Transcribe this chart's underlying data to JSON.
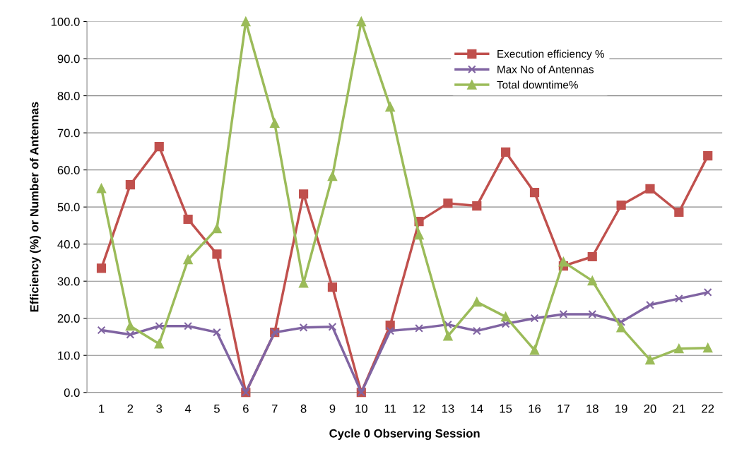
{
  "chart_data": {
    "type": "line",
    "xlabel": "Cycle 0 Observing Session",
    "ylabel": "Efficiency (%) or Number of Antennas",
    "categories": [
      "1",
      "2",
      "3",
      "4",
      "5",
      "6",
      "7",
      "8",
      "9",
      "10",
      "11",
      "12",
      "13",
      "14",
      "15",
      "16",
      "17",
      "18",
      "19",
      "20",
      "21",
      "22"
    ],
    "series": [
      {
        "name": "Execution efficiency %",
        "color": "#c0504d",
        "marker": "square",
        "values": [
          33.5,
          56.0,
          66.3,
          46.7,
          37.3,
          0,
          16.2,
          53.5,
          28.4,
          0,
          18.1,
          46.1,
          51.0,
          50.3,
          64.8,
          53.9,
          34.1,
          36.6,
          50.5,
          54.9,
          48.6,
          63.8
        ]
      },
      {
        "name": "Max No of Antennas",
        "color": "#8064a2",
        "marker": "cross",
        "values": [
          16.8,
          15.6,
          17.9,
          17.9,
          16.2,
          0,
          16.2,
          17.5,
          17.7,
          0,
          16.6,
          17.3,
          18.3,
          16.6,
          18.5,
          20.0,
          21.1,
          21.1,
          19.0,
          23.6,
          25.3,
          27.0
        ]
      },
      {
        "name": "Total downtime%",
        "color": "#9bbb59",
        "marker": "triangle",
        "values": [
          55.0,
          17.9,
          13.1,
          35.8,
          44.2,
          100,
          72.6,
          29.5,
          58.3,
          100,
          77.0,
          42.5,
          15.2,
          24.4,
          20.4,
          11.4,
          35.2,
          30.1,
          17.5,
          8.8,
          11.8,
          12.0
        ]
      }
    ],
    "ylim": [
      0,
      100
    ],
    "yticks": [
      {
        "value": 0,
        "label": "0.0"
      },
      {
        "value": 10,
        "label": "10.0"
      },
      {
        "value": 20,
        "label": "20.0"
      },
      {
        "value": 30,
        "label": "30.0"
      },
      {
        "value": 40,
        "label": "40.0"
      },
      {
        "value": 50,
        "label": "50.0"
      },
      {
        "value": 60,
        "label": "60.0"
      },
      {
        "value": 70,
        "label": "70.0"
      },
      {
        "value": 80,
        "label": "80.0"
      },
      {
        "value": 90,
        "label": "90.0"
      },
      {
        "value": 100,
        "label": "100.0"
      }
    ],
    "grid": "y",
    "legend": "top right",
    "line_style": "solid"
  }
}
